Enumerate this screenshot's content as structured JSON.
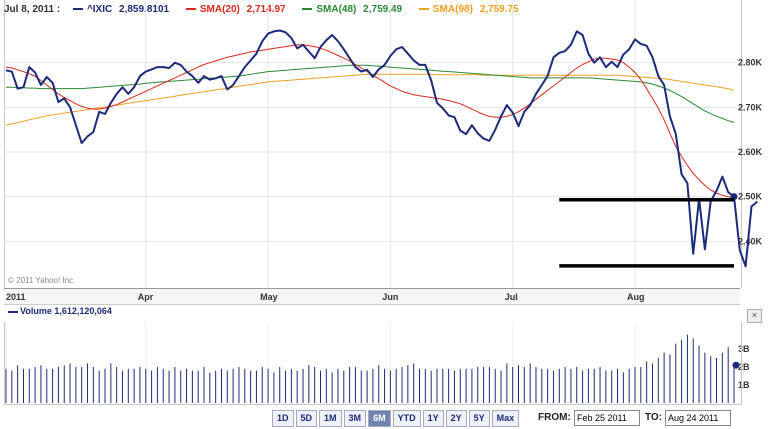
{
  "legend": {
    "date": "Jul 8, 2011 :",
    "main_series": "^IXIC",
    "main_value": "2,859.8101",
    "sma20_label": "SMA(20)",
    "sma20_value": "2,714.97",
    "sma48_label": "SMA(48)",
    "sma48_value": "2,759.49",
    "sma98_label": "SMA(98)",
    "sma98_value": "2,759.75"
  },
  "copyright": "© 2011 Yahoo! Inc.",
  "volume": {
    "label": "Volume",
    "value": "1,612,120,064",
    "ticks": [
      "3B",
      "2B",
      "1B"
    ]
  },
  "colors": {
    "ixic": "#1c2a7a",
    "sma20": "#d8291a",
    "sma48": "#2a8a34",
    "sma98": "#f0a020",
    "volume": "#1c2a7a"
  },
  "ranges": [
    "1D",
    "5D",
    "1M",
    "3M",
    "6M",
    "YTD",
    "1Y",
    "2Y",
    "5Y",
    "Max"
  ],
  "active_range": "6M",
  "from_label": "FROM:",
  "from_value": "Feb 25 2011",
  "to_label": "TO:",
  "to_value": "Aug 24 2011",
  "close_icon": "×",
  "chart_data": {
    "type": "line",
    "ylim": [
      2300,
      2900
    ],
    "yticks": [
      "2.80K",
      "2.70K",
      "2.60K",
      "2.50K",
      "2.40K"
    ],
    "ytick_values": [
      2800,
      2700,
      2600,
      2500,
      2400
    ],
    "xlabels": [
      "2011",
      "Apr",
      "May",
      "Jun",
      "Jul",
      "Aug"
    ],
    "xlabel_index": [
      0,
      24,
      45,
      66,
      87,
      108
    ],
    "n": 126,
    "series": [
      {
        "name": "^IXIC",
        "color": "#1c2a7a",
        "width": 2,
        "values": [
          2783,
          2780,
          2742,
          2745,
          2790,
          2778,
          2750,
          2768,
          2755,
          2712,
          2720,
          2700,
          2660,
          2620,
          2635,
          2645,
          2690,
          2685,
          2710,
          2730,
          2745,
          2730,
          2745,
          2770,
          2780,
          2785,
          2790,
          2790,
          2788,
          2800,
          2795,
          2780,
          2770,
          2755,
          2770,
          2762,
          2765,
          2770,
          2740,
          2750,
          2770,
          2790,
          2805,
          2820,
          2848,
          2865,
          2870,
          2872,
          2868,
          2855,
          2832,
          2840,
          2825,
          2810,
          2835,
          2850,
          2862,
          2848,
          2830,
          2810,
          2790,
          2780,
          2784,
          2768,
          2785,
          2795,
          2815,
          2830,
          2835,
          2820,
          2805,
          2795,
          2795,
          2760,
          2710,
          2698,
          2682,
          2678,
          2648,
          2640,
          2660,
          2642,
          2630,
          2625,
          2650,
          2680,
          2705,
          2688,
          2658,
          2690,
          2705,
          2730,
          2750,
          2770,
          2812,
          2822,
          2826,
          2840,
          2870,
          2862,
          2820,
          2800,
          2812,
          2790,
          2802,
          2790,
          2818,
          2830,
          2852,
          2842,
          2838,
          2812,
          2770,
          2750,
          2680,
          2640,
          2550,
          2530,
          2372,
          2495,
          2382,
          2490,
          2513,
          2545,
          2510,
          2500,
          2380,
          2344,
          2478,
          2489
        ]
      },
      {
        "name": "SMA(20)",
        "color": "#d8291a",
        "width": 1,
        "values": [
          2790,
          2788,
          2784,
          2780,
          2775,
          2770,
          2760,
          2750,
          2740,
          2730,
          2722,
          2715,
          2708,
          2702,
          2698,
          2696,
          2696,
          2698,
          2702,
          2706,
          2712,
          2718,
          2724,
          2730,
          2736,
          2742,
          2748,
          2754,
          2760,
          2766,
          2772,
          2778,
          2784,
          2790,
          2796,
          2800,
          2804,
          2808,
          2812,
          2815,
          2818,
          2821,
          2824,
          2826,
          2828,
          2830,
          2832,
          2834,
          2836,
          2838,
          2840,
          2840,
          2838,
          2836,
          2832,
          2828,
          2822,
          2816,
          2810,
          2804,
          2796,
          2788,
          2780,
          2772,
          2764,
          2756,
          2748,
          2742,
          2736,
          2732,
          2728,
          2726,
          2724,
          2722,
          2720,
          2718,
          2715,
          2712,
          2708,
          2702,
          2696,
          2690,
          2684,
          2680,
          2678,
          2678,
          2680,
          2684,
          2690,
          2698,
          2708,
          2718,
          2728,
          2738,
          2748,
          2758,
          2768,
          2778,
          2788,
          2796,
          2802,
          2808,
          2810,
          2810,
          2808,
          2806,
          2800,
          2790,
          2778,
          2762,
          2742,
          2720,
          2698,
          2672,
          2642,
          2612,
          2590,
          2570,
          2552,
          2538,
          2525,
          2515,
          2508,
          2503,
          2500,
          2497
        ]
      },
      {
        "name": "SMA(48)",
        "color": "#2a8a34",
        "width": 1,
        "values": [
          2745,
          2745,
          2744,
          2744,
          2743,
          2743,
          2742,
          2742,
          2742,
          2742,
          2742,
          2742,
          2742,
          2742,
          2743,
          2744,
          2745,
          2746,
          2747,
          2748,
          2749,
          2750,
          2751,
          2752,
          2754,
          2755,
          2756,
          2757,
          2758,
          2759,
          2760,
          2761,
          2762,
          2763,
          2764,
          2765,
          2766,
          2767,
          2768,
          2769,
          2770,
          2772,
          2774,
          2776,
          2778,
          2780,
          2781,
          2782,
          2783,
          2784,
          2785,
          2786,
          2787,
          2788,
          2789,
          2790,
          2791,
          2792,
          2793,
          2794,
          2794,
          2794,
          2794,
          2793,
          2792,
          2791,
          2790,
          2789,
          2788,
          2787,
          2786,
          2785,
          2784,
          2783,
          2782,
          2781,
          2780,
          2779,
          2778,
          2777,
          2776,
          2775,
          2774,
          2773,
          2772,
          2771,
          2770,
          2769,
          2768,
          2767,
          2766,
          2766,
          2766,
          2766,
          2766,
          2766,
          2766,
          2766,
          2766,
          2766,
          2766,
          2765,
          2764,
          2763,
          2762,
          2761,
          2760,
          2759,
          2758,
          2757,
          2755,
          2752,
          2748,
          2743,
          2738,
          2731,
          2724,
          2716,
          2708,
          2700,
          2692,
          2686,
          2680,
          2675,
          2670,
          2666
        ]
      },
      {
        "name": "SMA(98)",
        "color": "#f0a020",
        "width": 1,
        "values": [
          2660,
          2663,
          2666,
          2669,
          2672,
          2675,
          2678,
          2681,
          2683,
          2685,
          2687,
          2689,
          2691,
          2693,
          2695,
          2697,
          2699,
          2701,
          2703,
          2705,
          2707,
          2709,
          2711,
          2713,
          2715,
          2717,
          2719,
          2721,
          2723,
          2725,
          2727,
          2729,
          2731,
          2733,
          2735,
          2737,
          2739,
          2741,
          2743,
          2745,
          2747,
          2749,
          2751,
          2753,
          2755,
          2757,
          2758,
          2759,
          2760,
          2761,
          2762,
          2763,
          2764,
          2765,
          2766,
          2767,
          2768,
          2769,
          2770,
          2771,
          2772,
          2773,
          2774,
          2774,
          2774,
          2774,
          2774,
          2774,
          2774,
          2774,
          2774,
          2774,
          2774,
          2774,
          2773,
          2773,
          2773,
          2773,
          2773,
          2773,
          2773,
          2773,
          2772,
          2772,
          2772,
          2772,
          2772,
          2772,
          2772,
          2772,
          2772,
          2772,
          2772,
          2772,
          2772,
          2772,
          2772,
          2772,
          2772,
          2772,
          2772,
          2772,
          2772,
          2772,
          2772,
          2772,
          2771,
          2770,
          2769,
          2768,
          2767,
          2766,
          2765,
          2764,
          2762,
          2760,
          2758,
          2756,
          2754,
          2752,
          2750,
          2748,
          2746,
          2744,
          2742,
          2738
        ]
      }
    ],
    "hlines": [
      2493,
      2345
    ],
    "hline_start_index": 95,
    "volume_ylim": [
      0,
      4.5
    ],
    "volume_ticks": [
      3,
      2,
      1
    ],
    "volume": [
      1.9,
      1.8,
      2.1,
      1.9,
      1.9,
      2.0,
      2.1,
      1.9,
      1.9,
      2.0,
      2.1,
      2.2,
      2.0,
      2.0,
      2.2,
      2.0,
      1.8,
      1.9,
      2.2,
      2.0,
      1.8,
      1.9,
      1.9,
      2.0,
      1.9,
      1.8,
      2.0,
      1.9,
      1.8,
      2.0,
      1.8,
      1.9,
      1.8,
      1.8,
      2.0,
      1.7,
      1.8,
      1.9,
      1.8,
      1.9,
      2.0,
      1.9,
      1.8,
      1.8,
      2.0,
      1.9,
      1.7,
      2.0,
      1.8,
      1.9,
      1.8,
      1.9,
      2.1,
      2.0,
      1.8,
      1.9,
      1.7,
      1.9,
      1.8,
      2.0,
      2.0,
      1.8,
      1.8,
      1.9,
      2.1,
      1.9,
      1.8,
      1.9,
      2.0,
      2.1,
      2.2,
      1.9,
      1.9,
      1.8,
      1.9,
      1.9,
      1.9,
      1.8,
      1.9,
      1.9,
      1.9,
      2.0,
      2.0,
      2.0,
      1.9,
      1.8,
      2.2,
      2.0,
      2.1,
      2.0,
      2.2,
      2.0,
      1.9,
      1.9,
      1.8,
      1.9,
      2.0,
      1.9,
      2.0,
      1.8,
      1.9,
      1.9,
      2.0,
      1.8,
      1.8,
      1.9,
      1.7,
      1.9,
      2.0,
      2.0,
      2.3,
      2.2,
      2.5,
      2.8,
      2.7,
      3.3,
      3.5,
      3.8,
      3.6,
      3.2,
      2.8,
      2.6,
      2.5,
      2.8,
      3.1,
      2.1
    ]
  }
}
